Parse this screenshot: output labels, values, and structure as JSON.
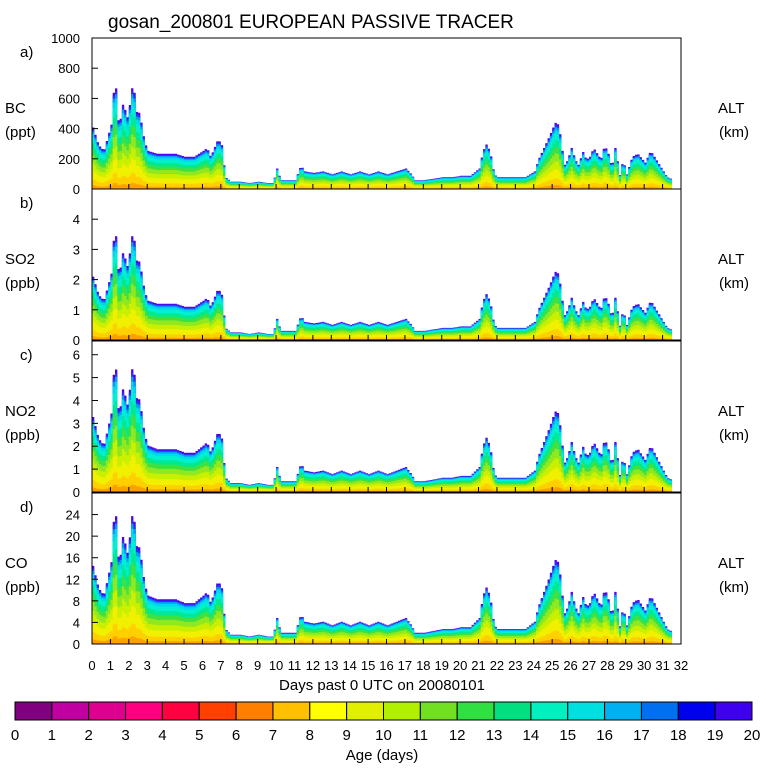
{
  "chart_data": {
    "type": "area",
    "title": "gosan_200801 EUROPEAN PASSIVE TRACER",
    "xlabel": "Days past 0 UTC on 20080101",
    "xlim": [
      0,
      32
    ],
    "x_ticks": [
      "0",
      "1",
      "2",
      "3",
      "4",
      "5",
      "6",
      "7",
      "8",
      "9",
      "10",
      "11",
      "12",
      "13",
      "14",
      "15",
      "16",
      "17",
      "18",
      "19",
      "20",
      "21",
      "22",
      "23",
      "24",
      "25",
      "26",
      "27",
      "28",
      "29",
      "30",
      "31",
      "32"
    ],
    "colorbar": {
      "label": "Age (days)",
      "ticks": [
        "0",
        "1",
        "2",
        "3",
        "4",
        "5",
        "6",
        "7",
        "8",
        "9",
        "10",
        "11",
        "12",
        "13",
        "14",
        "15",
        "16",
        "17",
        "18",
        "19",
        "20"
      ],
      "colors": [
        "#800080",
        "#c000a0",
        "#e00090",
        "#ff0080",
        "#ff0040",
        "#ff4000",
        "#ff8000",
        "#ffc000",
        "#ffff00",
        "#e0f000",
        "#b0f000",
        "#70e020",
        "#30e040",
        "#00e080",
        "#00f0c0",
        "#00e0e0",
        "#00b0f0",
        "#0070f0",
        "#0000f0",
        "#4000f0"
      ]
    },
    "panels": [
      {
        "letter": "a)",
        "species": "BC",
        "units": "(ppt)",
        "right_label": "ALT",
        "right_units": "(km)",
        "ylim": [
          0,
          1000
        ],
        "yticks": [
          "0",
          "200",
          "400",
          "600",
          "800",
          "1000"
        ],
        "tick_values": [
          0,
          200,
          400,
          600,
          800,
          1000
        ],
        "scale": 194
      },
      {
        "letter": "b)",
        "species": "SO2",
        "units": "(ppb)",
        "right_label": "ALT",
        "right_units": "(km)",
        "ylim": [
          0,
          5
        ],
        "yticks": [
          "0",
          "1",
          "2",
          "3",
          "4"
        ],
        "tick_values": [
          0,
          1,
          2,
          3,
          4
        ],
        "scale": 1
      },
      {
        "letter": "c)",
        "species": "NO2",
        "units": "(ppb)",
        "right_label": "ALT",
        "right_units": "(km)",
        "ylim": [
          0,
          6.6
        ],
        "yticks": [
          "0",
          "1",
          "2",
          "3",
          "4",
          "5",
          "6"
        ],
        "tick_values": [
          0,
          1,
          2,
          3,
          4,
          5,
          6
        ],
        "scale": 1.56
      },
      {
        "letter": "d)",
        "species": "CO",
        "units": "(ppb)",
        "right_label": "ALT",
        "right_units": "(km)",
        "ylim": [
          0,
          28
        ],
        "yticks": [
          "0",
          "4",
          "8",
          "12",
          "16",
          "20",
          "24"
        ],
        "tick_values": [
          0,
          4,
          8,
          12,
          16,
          20,
          24
        ],
        "scale": 6.9
      }
    ],
    "series_shape": {
      "description": "normalized total concentration vs day (SO2 units); multiply by panel scale",
      "x": [
        0,
        0.3,
        0.6,
        1.0,
        1.15,
        1.3,
        1.4,
        1.6,
        1.7,
        1.8,
        1.95,
        2.1,
        2.2,
        2.4,
        2.5,
        2.65,
        2.8,
        3.0,
        3.5,
        4.0,
        4.5,
        5.0,
        5.5,
        6.0,
        6.2,
        6.4,
        6.6,
        6.8,
        7.0,
        7.2,
        7.5,
        8.0,
        8.5,
        9.0,
        9.5,
        9.8,
        10.0,
        10.2,
        10.5,
        11.0,
        11.3,
        11.5,
        12.0,
        12.5,
        13.0,
        13.5,
        14.0,
        14.5,
        15.0,
        15.5,
        16.0,
        16.5,
        17.0,
        17.3,
        17.5,
        18.0,
        18.5,
        19.0,
        19.5,
        20.0,
        20.5,
        21.0,
        21.2,
        21.4,
        21.6,
        21.8,
        22.0,
        22.5,
        23.0,
        23.5,
        24.0,
        24.2,
        24.5,
        24.8,
        25.0,
        25.2,
        25.4,
        25.6,
        25.8,
        26.0,
        26.2,
        26.4,
        26.6,
        26.8,
        27.0,
        27.2,
        27.4,
        27.6,
        27.8,
        28.0,
        28.2,
        28.4,
        28.6,
        28.8,
        29.0,
        29.3,
        29.6,
        30.0,
        30.3,
        30.6,
        30.8,
        31.0,
        31.2,
        31.4
      ],
      "y": [
        2.1,
        1.5,
        1.3,
        2.2,
        3.5,
        3.4,
        2.0,
        2.8,
        3.1,
        2.3,
        2.6,
        3.4,
        3.55,
        2.5,
        2.6,
        2.2,
        1.6,
        1.3,
        1.2,
        1.2,
        1.2,
        1.1,
        1.1,
        1.3,
        1.4,
        1.1,
        1.4,
        1.7,
        1.5,
        0.4,
        0.25,
        0.25,
        0.2,
        0.25,
        0.2,
        0.2,
        0.7,
        0.3,
        0.3,
        0.3,
        0.8,
        0.6,
        0.55,
        0.6,
        0.5,
        0.6,
        0.5,
        0.6,
        0.5,
        0.6,
        0.5,
        0.6,
        0.7,
        0.5,
        0.3,
        0.3,
        0.35,
        0.4,
        0.4,
        0.45,
        0.45,
        0.7,
        1.3,
        1.55,
        1.2,
        0.5,
        0.4,
        0.4,
        0.4,
        0.4,
        0.6,
        1.0,
        1.4,
        1.8,
        2.1,
        2.35,
        1.8,
        0.8,
        1.0,
        1.4,
        1.0,
        0.8,
        1.3,
        1.0,
        1.1,
        1.4,
        1.2,
        1.0,
        1.5,
        1.2,
        0.7,
        1.5,
        0.4,
        1.0,
        0.5,
        1.1,
        1.2,
        0.9,
        1.3,
        1.0,
        0.8,
        0.6,
        0.4,
        0.35
      ]
    }
  }
}
